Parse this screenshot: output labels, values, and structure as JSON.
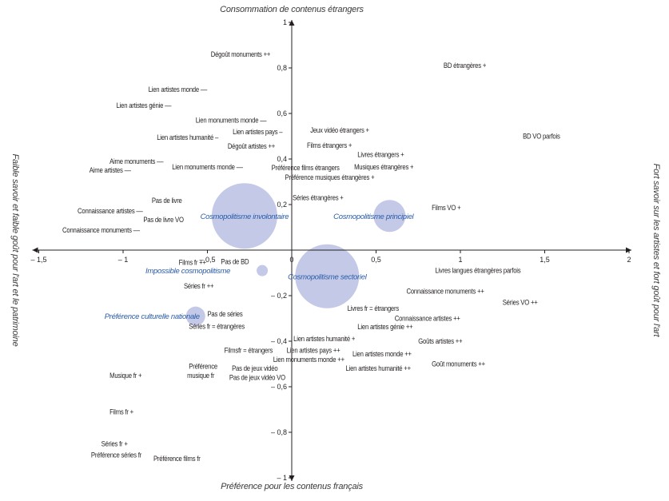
{
  "chart_data": {
    "type": "scatter",
    "title": "",
    "axis_titles": {
      "top": "Consommation de contenus étrangers",
      "bottom": "Préférence pour les contenus français",
      "left": "Faible savoir et faible goût pour l'art et le patrimoine",
      "right": "Fort savoir sur les artistes et fort goût pour l'art"
    },
    "xlim": [
      -1.5,
      2
    ],
    "ylim": [
      -1,
      1
    ],
    "x_ticks": [
      {
        "v": -1.5,
        "t": "– 1,5"
      },
      {
        "v": -1,
        "t": "– 1"
      },
      {
        "v": -0.5,
        "t": "– 0,5"
      },
      {
        "v": 0,
        "t": "0"
      },
      {
        "v": 0.5,
        "t": "0,5"
      },
      {
        "v": 1,
        "t": "1"
      },
      {
        "v": 1.5,
        "t": "1,5"
      },
      {
        "v": 2,
        "t": "2"
      }
    ],
    "y_ticks": [
      {
        "v": 1,
        "t": "1"
      },
      {
        "v": 0.8,
        "t": "0,8"
      },
      {
        "v": 0.6,
        "t": "0,6"
      },
      {
        "v": 0.4,
        "t": "0,4"
      },
      {
        "v": 0.2,
        "t": "0,2"
      },
      {
        "v": -0.2,
        "t": "– 0,2"
      },
      {
        "v": -0.4,
        "t": "– 0,4"
      },
      {
        "v": -0.6,
        "t": "– 0,6"
      },
      {
        "v": -0.8,
        "t": "– 0,8"
      },
      {
        "v": -1,
        "t": "– 1"
      }
    ],
    "grid": false,
    "clusters": [
      {
        "name": "Cosmopolitisme involontaire",
        "x": -0.28,
        "y": 0.15,
        "size": 41
      },
      {
        "name": "Cosmopolitisme principiel",
        "x": 0.58,
        "y": 0.15,
        "size": 20
      },
      {
        "name": "Cosmopolitisme sectoriel",
        "x": 0.21,
        "y": -0.115,
        "size": 40
      },
      {
        "name": "Impossible cosmopolitisme",
        "x": -0.175,
        "y": -0.09,
        "size": 7
      },
      {
        "name": "Préférence culturelle nationale",
        "x": -0.57,
        "y": -0.29,
        "size": 12
      }
    ],
    "points": [
      {
        "label": "Dégoût monuments ++",
        "x": -0.48,
        "y": 0.86
      },
      {
        "label": "Lien artistes monde ––",
        "x": -0.85,
        "y": 0.705
      },
      {
        "label": "Lien artistes génie ––",
        "x": -1.04,
        "y": 0.635
      },
      {
        "label": "Lien monuments monde ––",
        "x": -0.57,
        "y": 0.57
      },
      {
        "label": "Lien artistes pays –",
        "x": -0.35,
        "y": 0.52
      },
      {
        "label": "Lien artistes humanité –",
        "x": -0.8,
        "y": 0.495
      },
      {
        "label": "Dégoût artistes ++",
        "x": -0.38,
        "y": 0.456
      },
      {
        "label": "Aime monuments ––",
        "x": -1.08,
        "y": 0.39
      },
      {
        "label": "Aime artistes ––",
        "x": -1.2,
        "y": 0.36
      },
      {
        "label": "Lien monuments monde ––",
        "x": -0.71,
        "y": 0.365
      },
      {
        "label": "Jeux vidéo étrangers +",
        "x": 0.11,
        "y": 0.526
      },
      {
        "label": "Films étrangers +",
        "x": 0.09,
        "y": 0.46
      },
      {
        "label": "Livres étrangers +",
        "x": 0.39,
        "y": 0.42
      },
      {
        "label": "Préférence films étrangers",
        "x": -0.12,
        "y": 0.365
      },
      {
        "label": "Musiques étrangères +",
        "x": 0.37,
        "y": 0.365
      },
      {
        "label": "Préférence musiques étrangères +",
        "x": -0.04,
        "y": 0.32
      },
      {
        "label": "Séries étrangères +",
        "x": 0.005,
        "y": 0.23
      },
      {
        "label": "BD étrangères +",
        "x": 0.9,
        "y": 0.81
      },
      {
        "label": "BD VO parfois",
        "x": 1.37,
        "y": 0.5
      },
      {
        "label": "Films VO +",
        "x": 0.83,
        "y": 0.186
      },
      {
        "label": "Pas de livre",
        "x": -0.83,
        "y": 0.218
      },
      {
        "label": "Connaissance artistes ––",
        "x": -1.27,
        "y": 0.172
      },
      {
        "label": "Pas de livre VO",
        "x": -0.88,
        "y": 0.133
      },
      {
        "label": "Connaissance monuments ––",
        "x": -1.36,
        "y": 0.088
      },
      {
        "label": "Films fr ++",
        "x": -0.67,
        "y": -0.074
      },
      {
        "label": "Pas de BD",
        "x": -0.42,
        "y": -0.05
      },
      {
        "label": "Séries fr ++",
        "x": -0.64,
        "y": -0.158
      },
      {
        "label": "Pas de séries",
        "x": -0.5,
        "y": -0.28
      },
      {
        "label": "Séries fr = étrangères",
        "x": -0.61,
        "y": -0.326
      },
      {
        "label": "Filmsfr = étrangers",
        "x": -0.4,
        "y": -0.44
      },
      {
        "label": "Préférence",
        "x": -0.61,
        "y": -0.51
      },
      {
        "label": "musique fr",
        "x": -0.62,
        "y": -0.55
      },
      {
        "label": "Pas de jeux vidéo",
        "x": -0.355,
        "y": -0.52
      },
      {
        "label": "Pas de jeux vidéo VO",
        "x": -0.37,
        "y": -0.56
      },
      {
        "label": "Musique fr +",
        "x": -1.08,
        "y": -0.55
      },
      {
        "label": "Films fr +",
        "x": -1.08,
        "y": -0.71
      },
      {
        "label": "Séries fr +",
        "x": -1.13,
        "y": -0.85
      },
      {
        "label": "Préférence séries fr",
        "x": -1.19,
        "y": -0.9
      },
      {
        "label": "Préférence films fr",
        "x": -0.82,
        "y": -0.915
      },
      {
        "label": "Livres langues étrangères parfois",
        "x": 0.85,
        "y": -0.09
      },
      {
        "label": "Connaissance monuments ++",
        "x": 0.68,
        "y": -0.18
      },
      {
        "label": "Séries VO ++",
        "x": 1.25,
        "y": -0.23
      },
      {
        "label": "Livres fr = étrangers",
        "x": 0.33,
        "y": -0.256
      },
      {
        "label": "Connaissance artistes ++",
        "x": 0.61,
        "y": -0.3
      },
      {
        "label": "Lien artistes génie ++",
        "x": 0.39,
        "y": -0.337
      },
      {
        "label": "Lien artistes humanité +",
        "x": 0.01,
        "y": -0.39
      },
      {
        "label": "Goûts artistes ++",
        "x": 0.75,
        "y": -0.4
      },
      {
        "label": "Lien artistes pays ++",
        "x": -0.03,
        "y": -0.44
      },
      {
        "label": "Lien artistes monde ++",
        "x": 0.36,
        "y": -0.456
      },
      {
        "label": "Lien monuments monde ++",
        "x": -0.11,
        "y": -0.48
      },
      {
        "label": "Goût monuments ++",
        "x": 0.83,
        "y": -0.5
      },
      {
        "label": "Lien artistes humanité ++",
        "x": 0.32,
        "y": -0.52
      }
    ],
    "colors": {
      "bubble": "#c3c9e6",
      "cluster_label": "#2a5caa",
      "text": "#231f20",
      "axis": "#231f20"
    }
  }
}
